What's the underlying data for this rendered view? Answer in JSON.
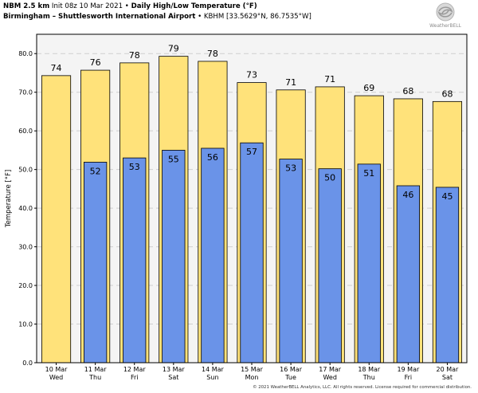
{
  "header": {
    "line1": {
      "model": "NBM 2.5 km",
      "init": "Init 08z 10 Mar 2021",
      "sep": "•",
      "title": "Daily High/Low Temperature (°F)"
    },
    "line2": {
      "location": "Birmingham – Shuttlesworth International Airport",
      "sep": "•",
      "station": "KBHM [33.5629°N, 86.7535°W]"
    }
  },
  "logo": {
    "text": "WeatherBELL",
    "icon": "weatherbell-swirl-logo"
  },
  "copyright": "© 2021 WeatherBELL Analytics, LLC. All rights reserved. License required for commercial distribution.",
  "colors": {
    "high": "#ffe27a",
    "low": "#6a93e8",
    "plot_bg": "#f4f4f4",
    "grid": "#cfcfcf",
    "bar_edge": "#000000"
  },
  "chart_data": {
    "type": "bar",
    "ylabel": "Temperature [°F]",
    "ylim": [
      0,
      85
    ],
    "yticks": [
      "0.0",
      "10.0",
      "20.0",
      "30.0",
      "40.0",
      "50.0",
      "60.0",
      "70.0",
      "80.0"
    ],
    "grid": true,
    "categories": [
      {
        "date": "10 Mar",
        "day": "Wed"
      },
      {
        "date": "11 Mar",
        "day": "Thu"
      },
      {
        "date": "12 Mar",
        "day": "Fri"
      },
      {
        "date": "13 Mar",
        "day": "Sat"
      },
      {
        "date": "14 Mar",
        "day": "Sun"
      },
      {
        "date": "15 Mar",
        "day": "Mon"
      },
      {
        "date": "16 Mar",
        "day": "Tue"
      },
      {
        "date": "17 Mar",
        "day": "Wed"
      },
      {
        "date": "18 Mar",
        "day": "Thu"
      },
      {
        "date": "19 Mar",
        "day": "Fri"
      },
      {
        "date": "20 Mar",
        "day": "Sat"
      }
    ],
    "series": [
      {
        "values": [
          74.3,
          75.7,
          77.6,
          79.3,
          78.0,
          72.5,
          70.6,
          71.4,
          69.1,
          68.3,
          67.6
        ],
        "labels": [
          "74",
          "76",
          "78",
          "79",
          "78",
          "73",
          "71",
          "71",
          "69",
          "68",
          "68"
        ]
      },
      {
        "values": [
          null,
          51.9,
          53.0,
          55.0,
          55.5,
          56.9,
          52.7,
          50.2,
          51.4,
          45.8,
          45.4
        ],
        "labels": [
          "",
          "52",
          "53",
          "55",
          "56",
          "57",
          "53",
          "50",
          "51",
          "46",
          "45"
        ]
      }
    ]
  }
}
